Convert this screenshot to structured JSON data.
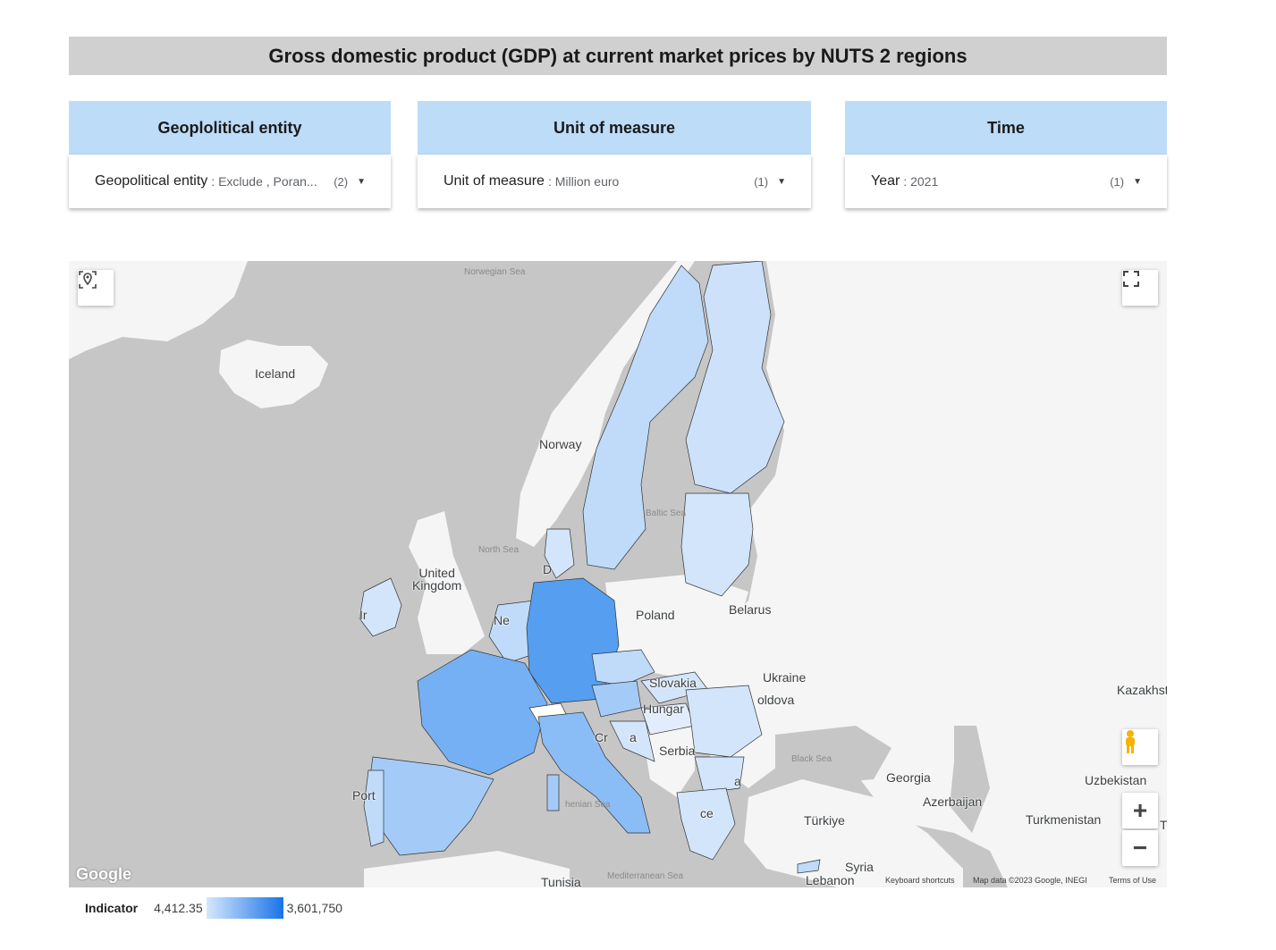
{
  "title": "Gross domestic product (GDP) at current market prices by NUTS 2 regions",
  "filters": [
    {
      "header": "Geoplolitical entity",
      "label": "Geopolitical entity",
      "value": ": Exclude , Poran...",
      "count": "(2)"
    },
    {
      "header": "Unit of measure",
      "label": "Unit of measure",
      "value": ": Million euro",
      "count": "(1)"
    },
    {
      "header": "Time",
      "label": "Year",
      "value": ": 2021",
      "count": "(1)"
    }
  ],
  "map": {
    "countries": {
      "iceland": "Iceland",
      "norway": "Norway",
      "uk": "United\nKingdom",
      "poland": "Poland",
      "belarus": "Belarus",
      "ukraine": "Ukraine",
      "slovakia": "Slovakia",
      "hungary": "Hungar",
      "moldova": "oldova",
      "serbia": "Serbia",
      "georgia": "Georgia",
      "azerbaijan": "Azerbaijan",
      "turkiye": "Türkiye",
      "turkmenistan": "Turkmenistan",
      "uzbekistan": "Uzbekistan",
      "kazakhstan": "Kazakhst",
      "syria": "Syria",
      "lebanon": "Lebanon",
      "tunisia": "Tunisia",
      "portugal": "Port",
      "ireland": "Ir",
      "netherlands": "Ne",
      "denmark": "D",
      "croatia": "Cr",
      "bosnia": "a",
      "greece": "ce",
      "bulgaria": "a",
      "t_edge": "T"
    },
    "seas": {
      "norwegian": "Norwegian Sea",
      "north": "North Sea",
      "baltic": "Baltic Sea",
      "black": "Black Sea",
      "tyrrhenian": "henian Sea",
      "mediterranean": "Mediterranean Sea"
    },
    "attribution": {
      "shortcuts": "Keyboard shortcuts",
      "data": "Map data ©2023 Google, INEGI",
      "terms": "Terms of Use",
      "logo": "Google"
    },
    "controls": {
      "zoom_in": "+",
      "zoom_out": "−"
    },
    "colors": {
      "water": "#c6c6c6",
      "land": "#f5f5f5",
      "germany": "#559ef0",
      "france": "#76b0f4",
      "italy": "#8abdf5",
      "spain": "#a4cbf7",
      "sweden": "#c0dbf9",
      "finland": "#cde2fa",
      "light": "#d3e5fb",
      "pale": "#e1edfc",
      "white": "#ffffff"
    }
  },
  "legend": {
    "title": "Indicator",
    "min": "4,412.35",
    "max": "3,601,750"
  }
}
